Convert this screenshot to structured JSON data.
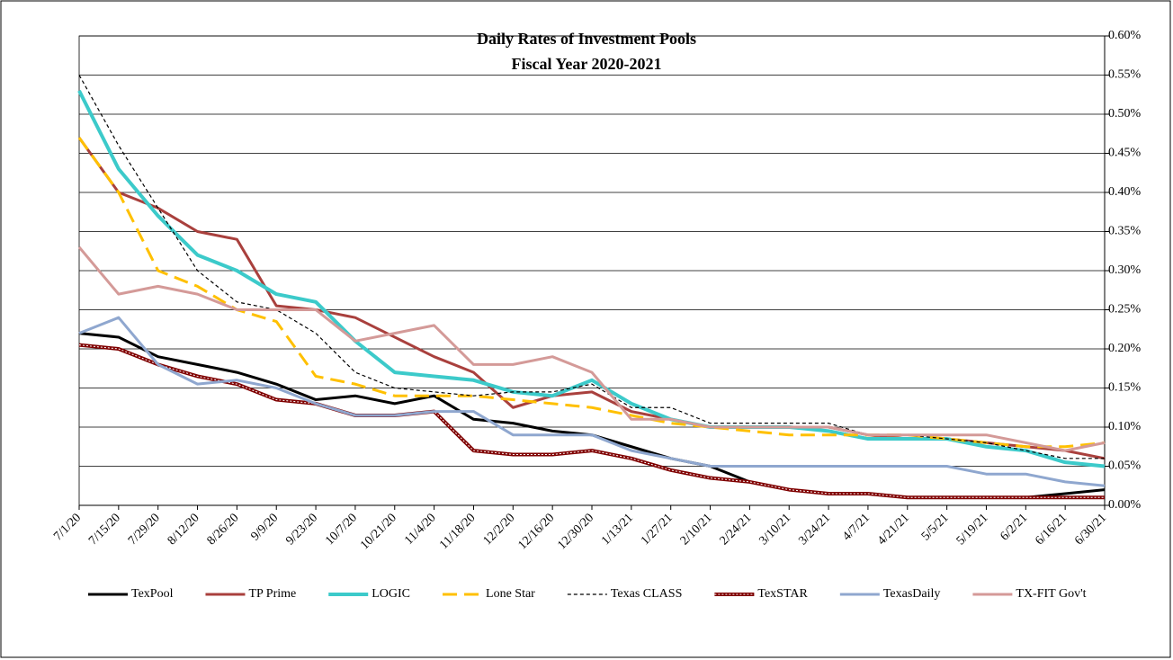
{
  "chart_data": {
    "type": "line",
    "title": "Daily Rates of Investment Pools",
    "subtitle": "Fiscal Year 2020-2021",
    "categories": [
      "7/1/20",
      "7/15/20",
      "7/29/20",
      "8/12/20",
      "8/26/20",
      "9/9/20",
      "9/23/20",
      "10/7/20",
      "10/21/20",
      "11/4/20",
      "11/18/20",
      "12/2/20",
      "12/16/20",
      "12/30/20",
      "1/13/21",
      "1/27/21",
      "2/10/21",
      "2/24/21",
      "3/10/21",
      "3/24/21",
      "4/7/21",
      "4/21/21",
      "5/5/21",
      "5/19/21",
      "6/2/21",
      "6/16/21",
      "6/30/21"
    ],
    "series": [
      {
        "name": "TexPool",
        "color": "#000000",
        "width": 3,
        "style": "solid",
        "values": [
          0.22,
          0.215,
          0.19,
          0.18,
          0.17,
          0.155,
          0.135,
          0.14,
          0.13,
          0.14,
          0.11,
          0.105,
          0.095,
          0.09,
          0.075,
          0.06,
          0.05,
          0.03,
          0.02,
          0.015,
          0.015,
          0.01,
          0.01,
          0.01,
          0.01,
          0.015,
          0.02
        ]
      },
      {
        "name": "TP Prime",
        "color": "#a9403d",
        "width": 3,
        "style": "solid",
        "values": [
          0.47,
          0.4,
          0.38,
          0.35,
          0.34,
          0.255,
          0.25,
          0.24,
          0.215,
          0.19,
          0.17,
          0.125,
          0.14,
          0.145,
          0.12,
          0.11,
          0.1,
          0.1,
          0.1,
          0.1,
          0.09,
          0.085,
          0.085,
          0.08,
          0.075,
          0.07,
          0.06
        ]
      },
      {
        "name": "LOGIC",
        "color": "#3ccaca",
        "width": 4,
        "style": "solid",
        "values": [
          0.53,
          0.43,
          0.37,
          0.32,
          0.3,
          0.27,
          0.26,
          0.21,
          0.17,
          0.165,
          0.16,
          0.145,
          0.14,
          0.16,
          0.13,
          0.11,
          0.1,
          0.1,
          0.1,
          0.095,
          0.085,
          0.085,
          0.085,
          0.075,
          0.07,
          0.055,
          0.05
        ]
      },
      {
        "name": "Lone Star",
        "color": "#ffc000",
        "width": 3,
        "style": "dashed",
        "values": [
          0.47,
          0.4,
          0.3,
          0.28,
          0.25,
          0.235,
          0.165,
          0.155,
          0.14,
          0.14,
          0.14,
          0.135,
          0.13,
          0.125,
          0.115,
          0.105,
          0.1,
          0.095,
          0.09,
          0.09,
          0.09,
          0.09,
          0.085,
          0.08,
          0.075,
          0.075,
          0.08
        ]
      },
      {
        "name": "Texas CLASS",
        "color": "#000000",
        "width": 1.2,
        "style": "dotted",
        "values": [
          0.55,
          0.46,
          0.38,
          0.3,
          0.26,
          0.25,
          0.22,
          0.17,
          0.15,
          0.145,
          0.14,
          0.145,
          0.145,
          0.155,
          0.125,
          0.125,
          0.105,
          0.105,
          0.105,
          0.105,
          0.09,
          0.09,
          0.085,
          0.08,
          0.07,
          0.06,
          0.06
        ]
      },
      {
        "name": "TexSTAR",
        "color": "#7f0000",
        "width": 4,
        "style": "double",
        "values": [
          0.205,
          0.2,
          0.18,
          0.165,
          0.155,
          0.135,
          0.13,
          0.115,
          0.115,
          0.12,
          0.07,
          0.065,
          0.065,
          0.07,
          0.06,
          0.045,
          0.035,
          0.03,
          0.02,
          0.015,
          0.015,
          0.01,
          0.01,
          0.01,
          0.01,
          0.01,
          0.01
        ]
      },
      {
        "name": "TexasDaily",
        "color": "#8fa7cf",
        "width": 3,
        "style": "solid",
        "values": [
          0.22,
          0.24,
          0.18,
          0.155,
          0.16,
          0.15,
          0.13,
          0.115,
          0.115,
          0.12,
          0.12,
          0.09,
          0.09,
          0.09,
          0.07,
          0.06,
          0.05,
          0.05,
          0.05,
          0.05,
          0.05,
          0.05,
          0.05,
          0.04,
          0.04,
          0.03,
          0.025
        ]
      },
      {
        "name": "TX-FIT Gov't",
        "color": "#d49a98",
        "width": 3,
        "style": "solid",
        "values": [
          0.33,
          0.27,
          0.28,
          0.27,
          0.25,
          0.25,
          0.25,
          0.21,
          0.22,
          0.23,
          0.18,
          0.18,
          0.19,
          0.17,
          0.11,
          0.11,
          0.1,
          0.1,
          0.1,
          0.1,
          0.09,
          0.09,
          0.09,
          0.09,
          0.08,
          0.07,
          0.08
        ]
      }
    ],
    "ylim": [
      0,
      0.6
    ],
    "yticks": [
      {
        "value": 0,
        "label": "0.00%"
      },
      {
        "value": 0.05,
        "label": "0.05%"
      },
      {
        "value": 0.1,
        "label": "0.10%"
      },
      {
        "value": 0.15,
        "label": "0.15%"
      },
      {
        "value": 0.2,
        "label": "0.20%"
      },
      {
        "value": 0.25,
        "label": "0.25%"
      },
      {
        "value": 0.3,
        "label": "0.30%"
      },
      {
        "value": 0.35,
        "label": "0.35%"
      },
      {
        "value": 0.4,
        "label": "0.40%"
      },
      {
        "value": 0.45,
        "label": "0.45%"
      },
      {
        "value": 0.5,
        "label": "0.50%"
      },
      {
        "value": 0.55,
        "label": "0.55%"
      },
      {
        "value": 0.6,
        "label": "0.60%"
      }
    ],
    "y_axis_side": "right",
    "grid": true,
    "legend": "bottom"
  }
}
